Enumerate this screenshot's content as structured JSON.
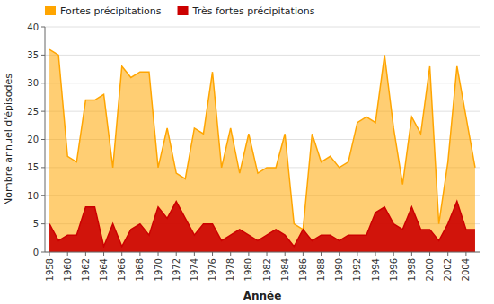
{
  "chart_data": {
    "type": "area",
    "x": [
      1958,
      1959,
      1960,
      1961,
      1962,
      1963,
      1964,
      1965,
      1966,
      1967,
      1968,
      1969,
      1970,
      1971,
      1972,
      1973,
      1974,
      1975,
      1976,
      1977,
      1978,
      1979,
      1980,
      1981,
      1982,
      1983,
      1984,
      1985,
      1986,
      1987,
      1988,
      1989,
      1990,
      1991,
      1992,
      1993,
      1994,
      1995,
      1996,
      1997,
      1998,
      1999,
      2000,
      2001,
      2002,
      2003,
      2004,
      2005
    ],
    "series": [
      {
        "name": "Fortes précipitations",
        "color": "#FFA500",
        "values": [
          36,
          35,
          17,
          16,
          27,
          27,
          28,
          15,
          33,
          31,
          32,
          32,
          15,
          22,
          14,
          13,
          22,
          21,
          32,
          15,
          22,
          14,
          21,
          14,
          15,
          15,
          21,
          5,
          4,
          21,
          16,
          17,
          15,
          16,
          23,
          24,
          23,
          35,
          22,
          12,
          24,
          21,
          33,
          5,
          16,
          33,
          24,
          15
        ]
      },
      {
        "name": "Très fortes précipitations",
        "color": "#CC0000",
        "values": [
          5,
          2,
          3,
          3,
          8,
          8,
          1,
          5,
          1,
          4,
          5,
          3,
          8,
          6,
          9,
          6,
          3,
          5,
          5,
          2,
          3,
          4,
          3,
          2,
          3,
          4,
          3,
          1,
          4,
          2,
          3,
          3,
          2,
          3,
          3,
          3,
          7,
          8,
          5,
          4,
          8,
          4,
          4,
          2,
          5,
          9,
          4,
          4
        ]
      }
    ],
    "xlabel": "Année",
    "ylabel": "Nombre annuel d'épisodes",
    "xlim": [
      1957.5,
      2005.5
    ],
    "xticks": [
      1958,
      1960,
      1962,
      1964,
      1966,
      1968,
      1970,
      1972,
      1974,
      1976,
      1978,
      1980,
      1982,
      1984,
      1986,
      1988,
      1990,
      1992,
      1994,
      1996,
      1998,
      2000,
      2002,
      2004
    ],
    "ylim": [
      0,
      40
    ],
    "yticks": [
      0,
      5,
      10,
      15,
      20,
      25,
      30,
      35,
      40
    ],
    "grid": true,
    "legend": "upper left"
  }
}
